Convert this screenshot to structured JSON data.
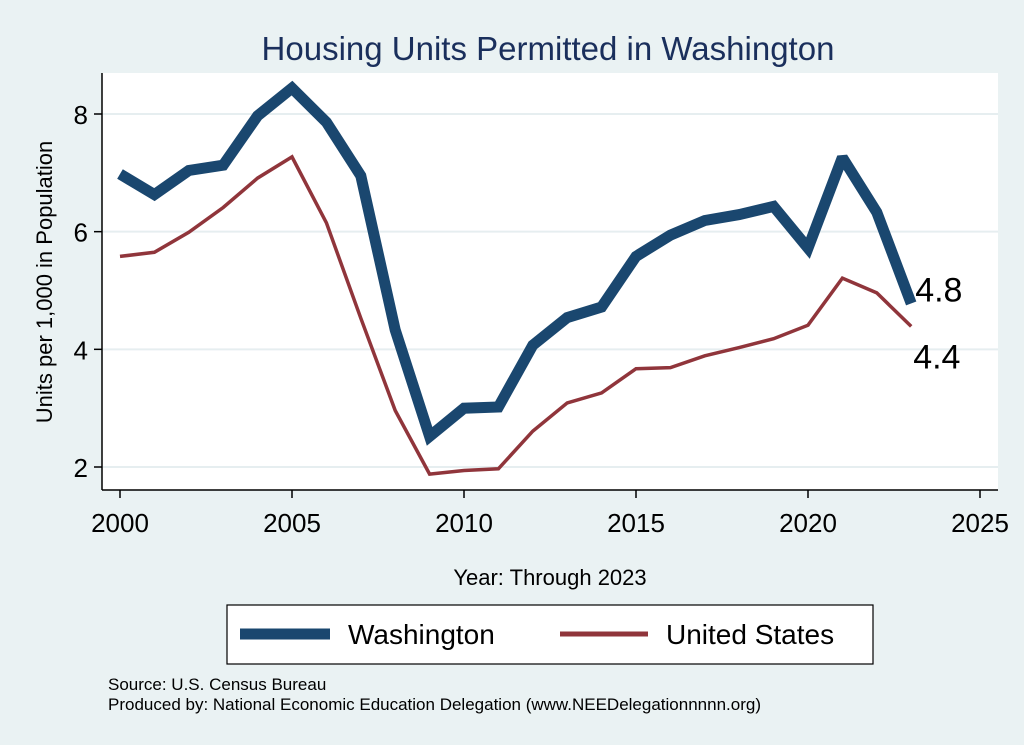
{
  "chart_data": {
    "type": "line",
    "title": "Housing Units Permitted in Washington",
    "xlabel": "Year: Through 2023",
    "ylabel": "Units per 1,000 in Population",
    "xlim": [
      1999,
      2026
    ],
    "ylim": [
      1.6,
      8.75
    ],
    "xticks": [
      2000,
      2005,
      2010,
      2015,
      2020,
      2025
    ],
    "yticks": [
      2,
      4,
      6,
      8
    ],
    "grid": true,
    "legend_position": "bottom",
    "x": [
      2000,
      2001,
      2002,
      2003,
      2004,
      2005,
      2006,
      2007,
      2008,
      2009,
      2010,
      2011,
      2012,
      2013,
      2014,
      2015,
      2016,
      2017,
      2018,
      2019,
      2020,
      2021,
      2022,
      2023
    ],
    "series": [
      {
        "name": "Washington",
        "color": "#1a476f",
        "values": [
          6.98,
          6.63,
          7.04,
          7.13,
          7.97,
          8.44,
          7.86,
          6.95,
          4.33,
          2.52,
          3.0,
          3.02,
          4.07,
          4.54,
          4.72,
          5.58,
          5.94,
          6.19,
          6.29,
          6.43,
          5.72,
          7.26,
          6.33,
          4.78
        ],
        "end_label": "4.8"
      },
      {
        "name": "United States",
        "color": "#90353b",
        "values": [
          5.58,
          5.65,
          5.99,
          6.41,
          6.91,
          7.27,
          6.15,
          4.53,
          2.96,
          1.88,
          1.94,
          1.97,
          2.61,
          3.09,
          3.26,
          3.67,
          3.69,
          3.89,
          4.03,
          4.18,
          4.41,
          5.21,
          4.96,
          4.39
        ],
        "end_label": "4.4"
      }
    ]
  },
  "source_note": "Source: U.S. Census Bureau",
  "producer_note": "Produced by: National Economic Education Delegation (www.NEEDelegationnnnn.org)"
}
